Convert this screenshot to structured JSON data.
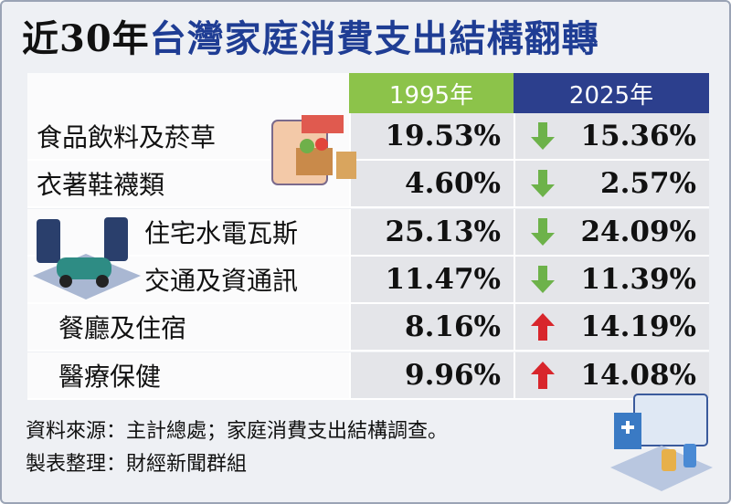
{
  "title": {
    "prefix": "近30年",
    "main": "台灣家庭消費支出結構翻轉"
  },
  "table": {
    "columns": [
      "1995年",
      "2025年"
    ],
    "rows": [
      {
        "label": "食品飲料及菸草",
        "v1995": "19.53%",
        "trend": "down",
        "v2025": "15.36%"
      },
      {
        "label": "衣著鞋襪類",
        "v1995": "4.60%",
        "trend": "down",
        "v2025": "2.57%"
      },
      {
        "label": "住宅水電瓦斯",
        "v1995": "25.13%",
        "trend": "down",
        "v2025": "24.09%"
      },
      {
        "label": "交通及資通訊",
        "v1995": "11.47%",
        "trend": "down",
        "v2025": "11.39%"
      },
      {
        "label": "餐廳及住宿",
        "v1995": "8.16%",
        "trend": "up",
        "v2025": "14.19%"
      },
      {
        "label": "醫療保健",
        "v1995": "9.96%",
        "trend": "up",
        "v2025": "14.08%"
      }
    ]
  },
  "footer": {
    "source": "資料來源：主計總處；家庭消費支出結構調查。",
    "credit": "製表整理：財經新聞群組"
  }
}
